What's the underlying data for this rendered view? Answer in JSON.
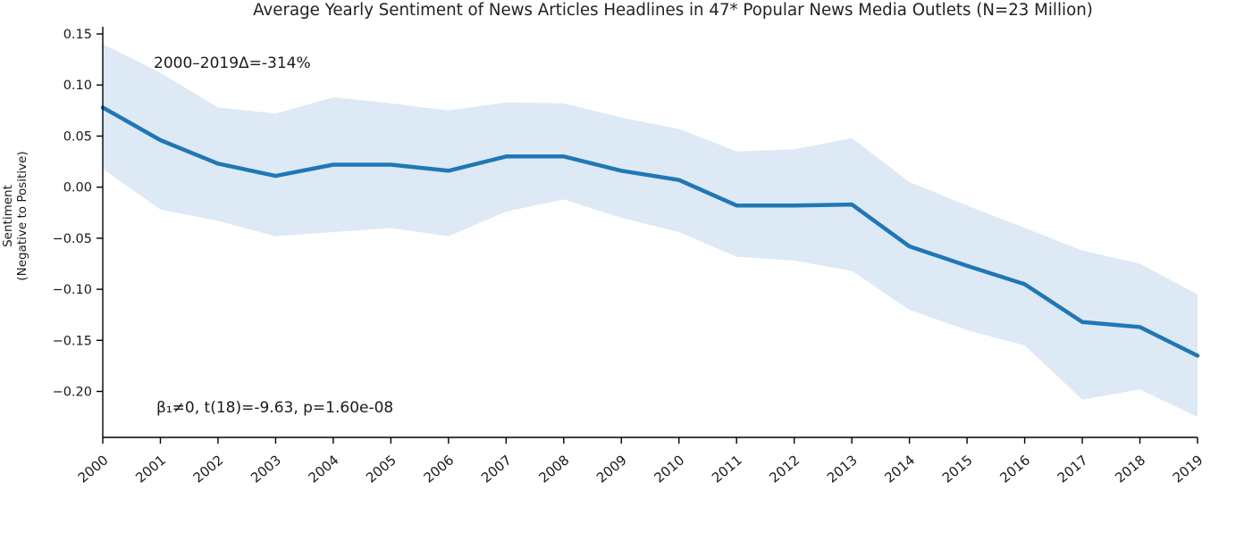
{
  "chart_data": {
    "type": "line",
    "title": "Average Yearly Sentiment of News Articles Headlines in 47* Popular News Media Outlets (N=23 Million)",
    "ylabel_lines": [
      "Sentiment",
      "(Negative to Positive)"
    ],
    "xlabel": "",
    "x": [
      2000,
      2001,
      2002,
      2003,
      2004,
      2005,
      2006,
      2007,
      2008,
      2009,
      2010,
      2011,
      2012,
      2013,
      2014,
      2015,
      2016,
      2017,
      2018,
      2019
    ],
    "series": [
      {
        "name": "average yearly sentiment",
        "values": [
          0.078,
          0.046,
          0.023,
          0.011,
          0.022,
          0.022,
          0.016,
          0.03,
          0.03,
          0.016,
          0.007,
          -0.018,
          -0.018,
          -0.017,
          -0.058,
          -0.077,
          -0.095,
          -0.132,
          -0.137,
          -0.165
        ]
      }
    ],
    "band": {
      "name": "confidence interval",
      "upper": [
        0.14,
        0.112,
        0.078,
        0.072,
        0.088,
        0.082,
        0.075,
        0.083,
        0.082,
        0.068,
        0.057,
        0.035,
        0.037,
        0.048,
        0.005,
        -0.018,
        -0.04,
        -0.062,
        -0.075,
        -0.105
      ],
      "lower": [
        0.018,
        -0.022,
        -0.033,
        -0.048,
        -0.044,
        -0.04,
        -0.048,
        -0.024,
        -0.012,
        -0.03,
        -0.044,
        -0.068,
        -0.072,
        -0.082,
        -0.12,
        -0.14,
        -0.155,
        -0.208,
        -0.198,
        -0.225
      ]
    },
    "annotations": [
      {
        "text": "2000–2019Δ=-314%"
      },
      {
        "text": "β₁≠0, t(18)=-9.63, p=1.60e-08"
      }
    ],
    "yticks": {
      "values": [
        0.15,
        0.1,
        0.05,
        0.0,
        -0.05,
        -0.1,
        -0.15,
        -0.2
      ],
      "labels": [
        "0.15",
        "0.10",
        "0.05",
        "0.00",
        "−0.05",
        "−0.10",
        "−0.15",
        "−0.20"
      ]
    },
    "ylim": [
      -0.245,
      0.157
    ],
    "xlim": [
      2000,
      2019
    ],
    "grid": false,
    "legend": "none",
    "line_color": "#2077b4",
    "band_color": "#dde9f5",
    "axis_color": "#000000",
    "text_color": "#1a1a1a"
  }
}
